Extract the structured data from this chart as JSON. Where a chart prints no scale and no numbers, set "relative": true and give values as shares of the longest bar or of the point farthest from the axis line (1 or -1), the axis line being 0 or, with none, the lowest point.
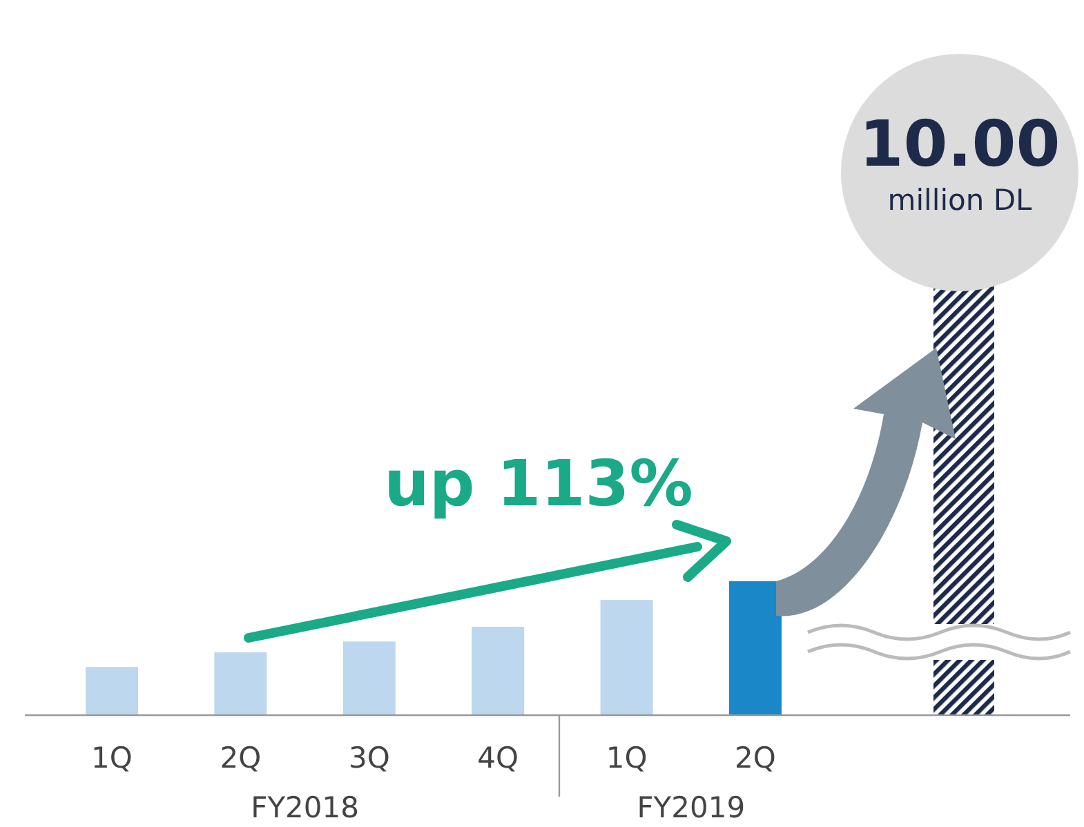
{
  "chart_data": {
    "type": "bar",
    "relative": true,
    "categories": [
      "1Q",
      "2Q",
      "3Q",
      "4Q",
      "1Q",
      "2Q"
    ],
    "values": [
      0.36,
      0.47,
      0.55,
      0.66,
      0.86,
      1
    ],
    "colors": [
      "#bdd7ee",
      "#bdd7ee",
      "#bdd7ee",
      "#bdd7ee",
      "#bdd7ee",
      "#1a87c9"
    ],
    "annotations": [
      "up 113%",
      "10.00",
      "million DL",
      "FY2018",
      "FY2019"
    ]
  }
}
